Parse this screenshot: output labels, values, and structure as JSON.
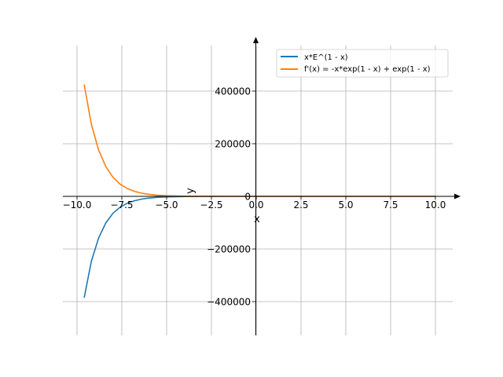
{
  "chart_data": {
    "type": "line",
    "title": "",
    "xlabel": "x",
    "ylabel": "y",
    "xlim": [
      -10.5,
      11
    ],
    "ylim": [
      -530000,
      580000
    ],
    "grid": true,
    "legend_position": "top-right",
    "x_ticks": [
      -10.0,
      -7.5,
      -5.0,
      -2.5,
      0.0,
      2.5,
      5.0,
      7.5,
      10.0
    ],
    "x_tick_labels": [
      "−10.0",
      "−7.5",
      "−5.0",
      "−2.5",
      "0.0",
      "2.5",
      "5.0",
      "7.5",
      "10.0"
    ],
    "y_ticks": [
      -400000,
      -200000,
      0,
      200000,
      400000
    ],
    "y_tick_labels": [
      "−400000",
      "−200000",
      "0",
      "200000",
      "400000"
    ],
    "x": [
      -9.6,
      -9.2,
      -8.8,
      -8.4,
      -8.0,
      -7.6,
      -7.2,
      -6.8,
      -6.4,
      -6.0,
      -5.5,
      -5,
      -4,
      -3,
      -2,
      -1,
      0,
      1,
      2,
      4,
      6,
      8,
      10
    ],
    "series": [
      {
        "name": "x*E^(1 - x)",
        "color": "#1f77b4",
        "values": [
          -385294,
          -247509,
          -158697,
          -101543,
          -64825,
          -41281,
          -26215,
          -16596,
          -10470,
          -6580,
          -3658,
          -2017,
          -594,
          -164,
          -40,
          -7.4,
          0,
          1,
          0.74,
          0.2,
          0.04,
          0.007,
          0.001
        ]
      },
      {
        "name": "f'(x) = -x*exp(1 - x) + exp(1 - x)",
        "color": "#ff7f0e",
        "values": [
          425429,
          274413,
          176730,
          113631,
          72928,
          46712,
          29856,
          19037,
          12106,
          7676,
          4323,
          2421,
          742,
          218,
          60,
          14.8,
          2.72,
          0,
          -0.37,
          -0.15,
          -0.03,
          -0.006,
          -0.001
        ]
      }
    ]
  }
}
